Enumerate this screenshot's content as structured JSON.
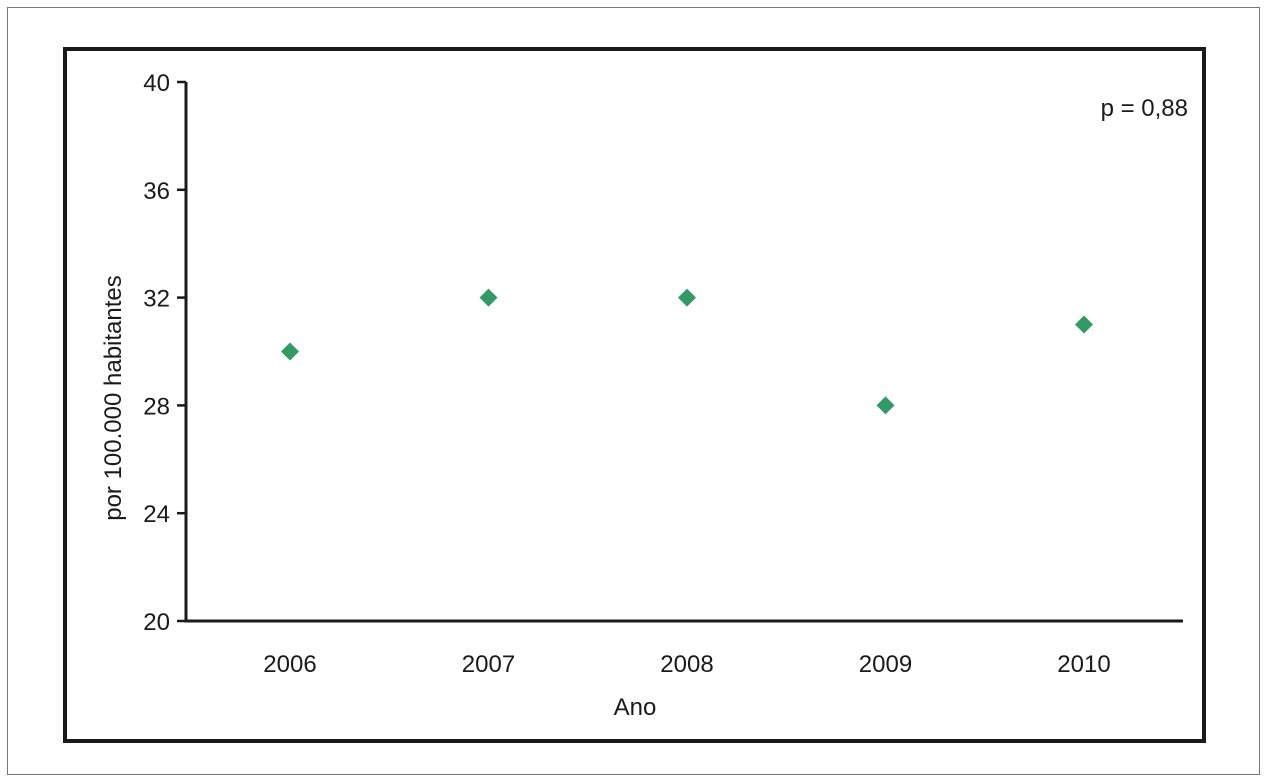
{
  "chart_data": {
    "type": "scatter",
    "title": "",
    "xlabel": "Ano",
    "ylabel": "por 100.000 habitantes",
    "categories": [
      "2006",
      "2007",
      "2008",
      "2009",
      "2010"
    ],
    "series": [
      {
        "values": [
          30,
          32,
          32,
          28,
          31
        ],
        "color": "#339966",
        "marker": "diamond"
      }
    ],
    "ylim": [
      20,
      40
    ],
    "yticks": [
      20,
      24,
      28,
      32,
      36,
      40
    ],
    "yticks_labels": [
      "20",
      "24",
      "28",
      "32",
      "36",
      "40"
    ],
    "grid": false,
    "legend": "none",
    "annotation": "p = 0,88",
    "axis_color": "#1a1a1a"
  }
}
